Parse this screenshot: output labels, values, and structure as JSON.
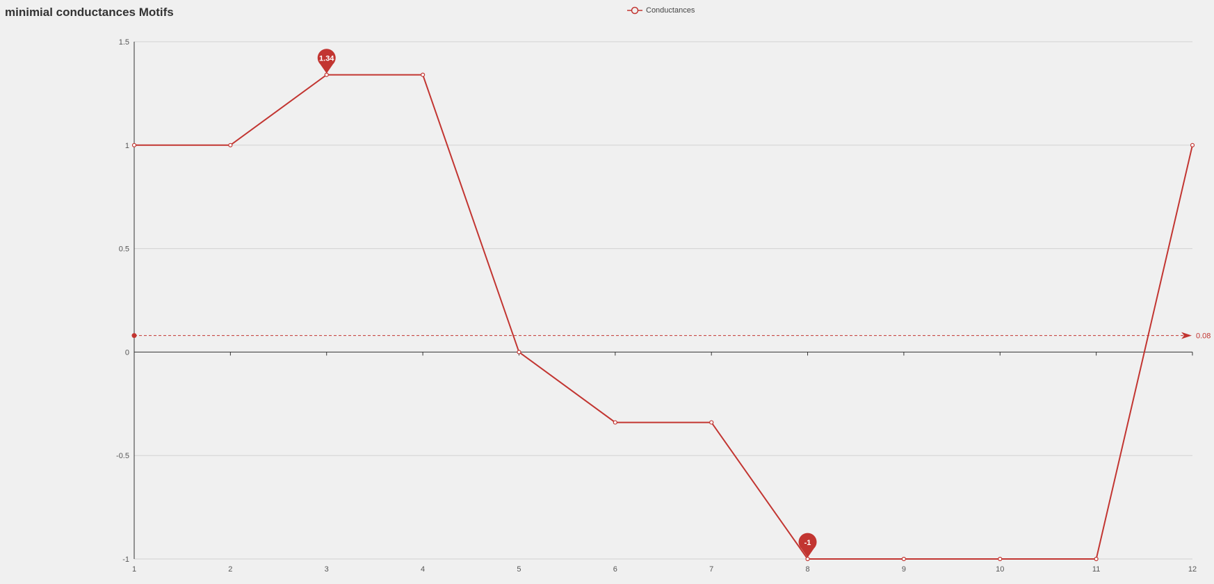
{
  "chart_data": {
    "type": "line",
    "title": "minimial conductances Motifs",
    "x": [
      "1",
      "2",
      "3",
      "4",
      "5",
      "6",
      "7",
      "8",
      "9",
      "10",
      "11",
      "12"
    ],
    "series": [
      {
        "name": "Conductances",
        "values": [
          1,
          1,
          1.34,
          1.34,
          0,
          -0.34,
          -0.34,
          -1,
          -1,
          -1,
          -1,
          1
        ],
        "color": "#c23531"
      }
    ],
    "ylim": [
      -1,
      1.5
    ],
    "yticks": [
      "1.5",
      "1",
      "0.5",
      "0",
      "-0.5",
      "-1"
    ],
    "ytick_values": [
      1.5,
      1,
      0.5,
      0,
      -0.5,
      -1
    ],
    "grid": true,
    "legend_position": "top-center",
    "mark_points": [
      {
        "label": "1.34",
        "x_index": 2,
        "value": 1.34
      },
      {
        "label": "-1",
        "x_index": 7,
        "value": -1
      }
    ],
    "mark_line": {
      "label": "0.08",
      "value": 0.08,
      "style": "dashed"
    }
  }
}
